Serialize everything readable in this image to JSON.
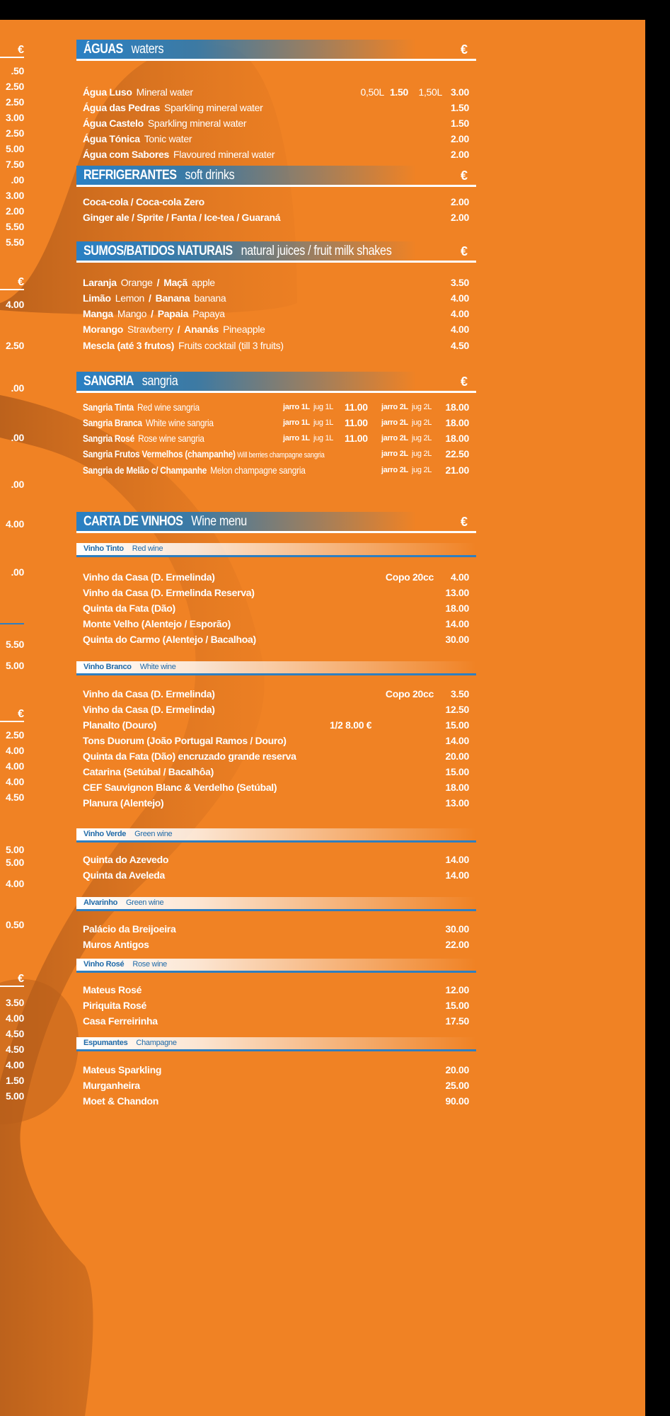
{
  "colors": {
    "background": "#f08224",
    "header_blue": "#2a80c4",
    "text": "#ffffff",
    "subheader_text": "#1f6aa8"
  },
  "left_column": {
    "groups": [
      {
        "euro": "€",
        "prices": [
          ".50",
          "2.50",
          "2.50",
          "3.00",
          "2.50",
          "5.00",
          "7.50",
          ".00",
          "3.00",
          "2.00",
          "5.50",
          "5.50"
        ]
      },
      {
        "euro": "€",
        "prices": [
          "4.00",
          "2.50",
          ".00",
          ".00",
          ".00",
          "4.00",
          ".00"
        ]
      },
      {
        "euro": "",
        "prices": [
          "5.50",
          "5.00"
        ]
      },
      {
        "euro": "€",
        "prices": [
          "2.50",
          "4.00",
          "4.00",
          "4.00",
          "4.50",
          "5.00",
          "5.00",
          "4.00",
          "0.50"
        ]
      },
      {
        "euro": "€",
        "prices": [
          "3.50",
          "4.00",
          "4.50",
          "4.50",
          "4.00",
          "1.50",
          "5.00"
        ]
      }
    ]
  },
  "sections": [
    {
      "title": "ÁGUAS",
      "subtitle": "waters",
      "currency": "€",
      "groups": [
        {
          "items": [
            {
              "name": "Água Luso",
              "desc": "Mineral water",
              "size1": "0,50L",
              "price1": "1.50",
              "size2": "1,50L",
              "price": "3.00"
            },
            {
              "name": "Água das Pedras",
              "desc": "Sparkling mineral water",
              "price": "1.50"
            },
            {
              "name": "Água Castelo",
              "desc": "Sparkling mineral water",
              "price": "1.50"
            },
            {
              "name": "Água Tónica",
              "desc": "Tonic water",
              "price": "2.00"
            },
            {
              "name": "Água com Sabores",
              "desc": "Flavoured mineral water",
              "price": "2.00"
            }
          ]
        }
      ]
    },
    {
      "title": "REFRIGERANTES",
      "subtitle": "soft drinks",
      "currency": "€",
      "groups": [
        {
          "items": [
            {
              "name": "Coca-cola / Coca-cola Zero",
              "price": "2.00"
            },
            {
              "name": "Ginger ale / Sprite / Fanta / Ice-tea / Guaraná",
              "price": "2.00"
            }
          ]
        }
      ]
    },
    {
      "title": "SUMOS/BATIDOS NATURAIS",
      "subtitle": "natural juices / fruit milk shakes",
      "currency": "€",
      "groups": [
        {
          "items": [
            {
              "name": "Laranja",
              "desc": "Orange",
              "sep": "/",
              "name2": "Maçã",
              "desc2": "apple",
              "price": "3.50"
            },
            {
              "name": "Limão",
              "desc": "Lemon",
              "sep": "/",
              "name2": "Banana",
              "desc2": "banana",
              "price": "4.00"
            },
            {
              "name": "Manga",
              "desc": "Mango",
              "sep": "/",
              "name2": "Papaia",
              "desc2": "Papaya",
              "price": "4.00"
            },
            {
              "name": "Morango",
              "desc": "Strawberry",
              "sep": "/",
              "name2": "Ananás",
              "desc2": "Pineapple",
              "price": "4.00"
            },
            {
              "name": "Mescla (até 3 frutos)",
              "desc": "Fruits cocktail (till 3 fruits)",
              "price": "4.50"
            }
          ]
        }
      ]
    },
    {
      "title": "SANGRIA",
      "subtitle": "sangria",
      "currency": "€",
      "groups": [
        {
          "items": [
            {
              "name": "Sangria Tinta",
              "desc": "Red wine sangria",
              "jarro1": {
                "pt": "jarro 1L",
                "en": "jug 1L",
                "price": "11.00"
              },
              "jarro2": {
                "pt": "jarro 2L",
                "en": "jug 2L"
              },
              "price": "18.00"
            },
            {
              "name": "Sangria Branca",
              "desc": "White wine sangria",
              "jarro1": {
                "pt": "jarro 1L",
                "en": "jug 1L",
                "price": "11.00"
              },
              "jarro2": {
                "pt": "jarro 2L",
                "en": "jug 2L"
              },
              "price": "18.00"
            },
            {
              "name": "Sangria Rosé",
              "desc": "Rose wine sangria",
              "jarro1": {
                "pt": "jarro 1L",
                "en": "jug 1L",
                "price": "11.00"
              },
              "jarro2": {
                "pt": "jarro 2L",
                "en": "jug 2L"
              },
              "price": "18.00"
            },
            {
              "name": "Sangria Frutos Vermelhos (champanhe)",
              "desc_small": "Will berries champagne sangria",
              "jarro2": {
                "pt": "jarro 2L",
                "en": "jug 2L"
              },
              "price": "22.50"
            },
            {
              "name": "Sangria de Melão c/  Champanhe",
              "desc": "Melon champagne sangria",
              "jarro2": {
                "pt": "jarro 2L",
                "en": "jug 2L"
              },
              "price": "21.00"
            }
          ]
        }
      ]
    },
    {
      "title": "CARTA DE VINHOS",
      "subtitle": "Wine menu",
      "currency": "€",
      "groups": [
        {
          "label": "Vinho Tinto",
          "label_en": "Red wine",
          "items": [
            {
              "name": "Vinho da Casa (D. Ermelinda)",
              "note": "Copo 20cc",
              "price": "4.00"
            },
            {
              "name": "Vinho da Casa (D. Ermelinda Reserva)",
              "price": "13.00"
            },
            {
              "name": "Quinta da Fata (Dão)",
              "price": "18.00"
            },
            {
              "name": "Monte Velho (Alentejo / Esporão)",
              "price": "14.00"
            },
            {
              "name": "Quinta do Carmo (Alentejo / Bacalhoa)",
              "price": "30.00"
            }
          ]
        },
        {
          "label": "Vinho Branco",
          "label_en": "White wine",
          "items": [
            {
              "name": "Vinho da Casa (D. Ermelinda)",
              "note": "Copo 20cc",
              "price": "3.50"
            },
            {
              "name": "Vinho da Casa (D. Ermelinda)",
              "price": "12.50"
            },
            {
              "name": "Planalto (Douro)",
              "half": "1/2  8.00 €",
              "price": "15.00"
            },
            {
              "name": "Tons Duorum (João Portugal Ramos / Douro)",
              "price": "14.00"
            },
            {
              "name": "Quinta da Fata (Dão)  encruzado grande reserva",
              "price": "20.00"
            },
            {
              "name": "Catarina (Setúbal / Bacalhôa)",
              "price": "15.00"
            },
            {
              "name": "CEF Sauvignon Blanc & Verdelho (Setúbal)",
              "price": "18.00"
            },
            {
              "name": "Planura (Alentejo)",
              "price": "13.00"
            }
          ]
        },
        {
          "label": "Vinho Verde",
          "label_en": "Green wine",
          "items": [
            {
              "name": "Quinta do Azevedo",
              "price": "14.00"
            },
            {
              "name": "Quinta da Aveleda",
              "price": "14.00"
            }
          ]
        },
        {
          "label": "Alvarinho",
          "label_en": "Green wine",
          "items": [
            {
              "name": "Palácio da Breijoeira",
              "price": "30.00"
            },
            {
              "name": "Muros Antigos",
              "price": "22.00"
            }
          ]
        },
        {
          "label": "Vinho Rosé",
          "label_en": "Rose wine",
          "items": [
            {
              "name": "Mateus Rosé",
              "price": "12.00"
            },
            {
              "name": "Piriquita Rosé",
              "price": "15.00"
            },
            {
              "name": "Casa Ferreirinha",
              "price": "17.50"
            }
          ]
        },
        {
          "label": "Espumantes",
          "label_en": "Champagne",
          "items": [
            {
              "name": "Mateus Sparkling",
              "price": "20.00"
            },
            {
              "name": "Murganheira",
              "price": "25.00"
            },
            {
              "name": "Moet & Chandon",
              "price": "90.00"
            }
          ]
        }
      ]
    }
  ]
}
